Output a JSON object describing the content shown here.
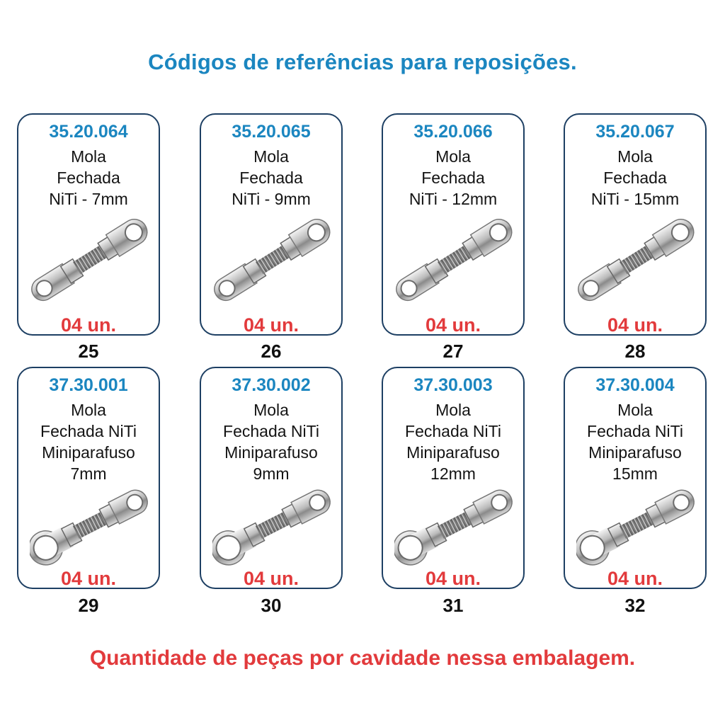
{
  "header": "Códigos de referências para reposições.",
  "footer": "Quantidade de peças por cavidade nessa embalagem.",
  "cards": [
    {
      "code": "35.20.064",
      "lines": [
        "Mola",
        "Fechada",
        "NiTi - 7mm"
      ],
      "qty": "04 un.",
      "number": "25"
    },
    {
      "code": "35.20.065",
      "lines": [
        "Mola",
        "Fechada",
        "NiTi - 9mm"
      ],
      "qty": "04 un.",
      "number": "26"
    },
    {
      "code": "35.20.066",
      "lines": [
        "Mola",
        "Fechada",
        "NiTi - 12mm"
      ],
      "qty": "04 un.",
      "number": "27"
    },
    {
      "code": "35.20.067",
      "lines": [
        "Mola",
        "Fechada",
        "NiTi - 15mm"
      ],
      "qty": "04 un.",
      "number": "28"
    },
    {
      "code": "37.30.001",
      "lines": [
        "Mola",
        "Fechada NiTi",
        "Miniparafuso",
        "7mm"
      ],
      "qty": "04 un.",
      "number": "29"
    },
    {
      "code": "37.30.002",
      "lines": [
        "Mola",
        "Fechada NiTi",
        "Miniparafuso",
        "9mm"
      ],
      "qty": "04 un.",
      "number": "30"
    },
    {
      "code": "37.30.003",
      "lines": [
        "Mola",
        "Fechada NiTi",
        "Miniparafuso",
        "12mm"
      ],
      "qty": "04 un.",
      "number": "31"
    },
    {
      "code": "37.30.004",
      "lines": [
        "Mola",
        "Fechada NiTi",
        "Miniparafuso",
        "15mm"
      ],
      "qty": "04 un.",
      "number": "32"
    }
  ],
  "colors": {
    "code": "#1b86c0",
    "quantity": "#e23a3c",
    "border": "#1d3f63",
    "text": "#141414"
  },
  "icons": [
    "closed-coil-spring-icon"
  ]
}
